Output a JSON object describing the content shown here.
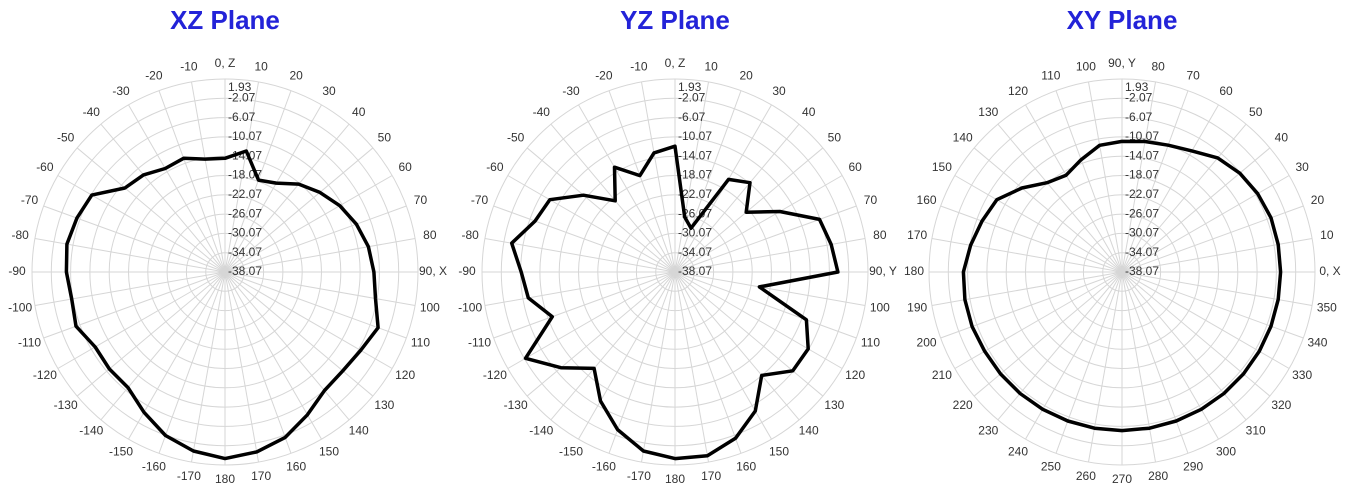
{
  "chart_data": [
    {
      "type": "polar",
      "title": "XZ Plane",
      "zero": "top",
      "direction": "clockwise",
      "color": "#000000",
      "grid": true,
      "theta": [
        0,
        10,
        20,
        30,
        40,
        50,
        60,
        70,
        80,
        90,
        100,
        110,
        120,
        130,
        140,
        150,
        160,
        170,
        180,
        -170,
        -160,
        -150,
        -140,
        -130,
        -120,
        -110,
        -100,
        -90,
        -80,
        -70,
        -60,
        -50,
        -40,
        -30,
        -20,
        -10
      ],
      "values": [
        -14.5,
        -12.6,
        -17.8,
        -16.8,
        -14.3,
        -12.4,
        -10.6,
        -9.1,
        -7.9,
        -7.2,
        -6.4,
        -4.3,
        -5.6,
        -6.2,
        -6.0,
        -3.9,
        -1.6,
        -0.2,
        0.6,
        -0.4,
        -2.0,
        -4.5,
        -6.8,
        -6.8,
        -7.0,
        -5.2,
        -5.8,
        -5.2,
        -4.8,
        -5.4,
        -6.2,
        -11.0,
        -11.8,
        -13.3,
        -13.0,
        -14.3
      ],
      "thetaticks": [
        {
          "value": 0,
          "label": "0, Z"
        },
        10,
        20,
        30,
        40,
        50,
        60,
        70,
        80,
        {
          "value": 90,
          "label": "90, X"
        },
        100,
        110,
        120,
        130,
        140,
        150,
        160,
        170,
        180,
        -170,
        -160,
        -150,
        -140,
        -130,
        -120,
        -110,
        -100,
        -90,
        -80,
        -70,
        -60,
        -50,
        -40,
        -30,
        -20,
        -10
      ],
      "rlim": [
        -38.07,
        1.93
      ],
      "rticks": [
        1.93,
        -2.07,
        -6.07,
        -10.07,
        -14.07,
        -18.07,
        -22.07,
        -26.07,
        -30.07,
        -34.07,
        -38.07
      ]
    },
    {
      "type": "polar",
      "title": "YZ Plane",
      "zero": "top",
      "direction": "clockwise",
      "color": "#000000",
      "grid": true,
      "theta": [
        0,
        10,
        20,
        30,
        40,
        50,
        60,
        70,
        80,
        90,
        100,
        110,
        120,
        130,
        140,
        150,
        160,
        170,
        180,
        -170,
        -160,
        -150,
        -140,
        -130,
        -120,
        -110,
        -100,
        -90,
        -80,
        -70,
        -60,
        -50,
        -40,
        -30,
        -20,
        -10
      ],
      "values": [
        -12.0,
        -26.5,
        -28.4,
        -15.9,
        -13.9,
        -18.8,
        -13.0,
        -6.2,
        -5.2,
        -4.3,
        -20.3,
        -9.1,
        -6.2,
        -6.2,
        -10.1,
        -4.8,
        -1.4,
        0.6,
        0.6,
        -0.4,
        -3.3,
        -7.2,
        -12.0,
        -7.2,
        -2.3,
        -11.0,
        -7.2,
        -6.2,
        -3.7,
        -7.2,
        -8.1,
        -13.3,
        -18.8,
        -13.0,
        -16.8,
        -13.0
      ],
      "thetaticks": [
        {
          "value": 0,
          "label": "0, Z"
        },
        10,
        20,
        30,
        40,
        50,
        60,
        70,
        80,
        {
          "value": 90,
          "label": "90, Y"
        },
        100,
        110,
        120,
        130,
        140,
        150,
        160,
        170,
        180,
        -170,
        -160,
        -150,
        -140,
        -130,
        -120,
        -110,
        -100,
        -90,
        -80,
        -70,
        -60,
        -50,
        -40,
        -30,
        -20,
        -10
      ],
      "rlim": [
        -38.07,
        1.93
      ],
      "rticks": [
        1.93,
        -2.07,
        -6.07,
        -10.07,
        -14.07,
        -18.07,
        -22.07,
        -26.07,
        -30.07,
        -34.07,
        -38.07
      ]
    },
    {
      "type": "polar",
      "title": "XY Plane",
      "zero": "right",
      "direction": "counterclockwise",
      "color": "#000000",
      "grid": true,
      "theta": [
        0,
        10,
        20,
        30,
        40,
        50,
        60,
        70,
        80,
        90,
        100,
        110,
        120,
        130,
        140,
        150,
        160,
        170,
        180,
        190,
        200,
        210,
        220,
        230,
        240,
        250,
        260,
        270,
        280,
        290,
        300,
        310,
        320,
        330,
        340,
        350
      ],
      "values": [
        -5.2,
        -5.2,
        -5.2,
        -5.6,
        -6.2,
        -7.2,
        -9.1,
        -10.1,
        -10.6,
        -11.0,
        -11.4,
        -13.3,
        -14.9,
        -13.9,
        -11.0,
        -8.1,
        -7.2,
        -6.2,
        -5.2,
        -5.0,
        -5.0,
        -5.2,
        -5.2,
        -5.2,
        -5.2,
        -5.2,
        -5.2,
        -5.2,
        -5.2,
        -5.2,
        -5.2,
        -5.2,
        -5.2,
        -5.2,
        -5.2,
        -5.2
      ],
      "thetaticks": [
        {
          "value": 0,
          "label": "0, X"
        },
        10,
        20,
        30,
        40,
        50,
        60,
        70,
        80,
        {
          "value": 90,
          "label": "90, Y"
        },
        100,
        110,
        120,
        130,
        140,
        150,
        160,
        170,
        180,
        190,
        200,
        210,
        220,
        230,
        240,
        250,
        260,
        270,
        280,
        290,
        300,
        310,
        320,
        330,
        340,
        350
      ],
      "rlim": [
        -38.07,
        1.93
      ],
      "rticks": [
        1.93,
        -2.07,
        -6.07,
        -10.07,
        -14.07,
        -18.07,
        -22.07,
        -26.07,
        -30.07,
        -34.07,
        -38.07
      ]
    }
  ]
}
